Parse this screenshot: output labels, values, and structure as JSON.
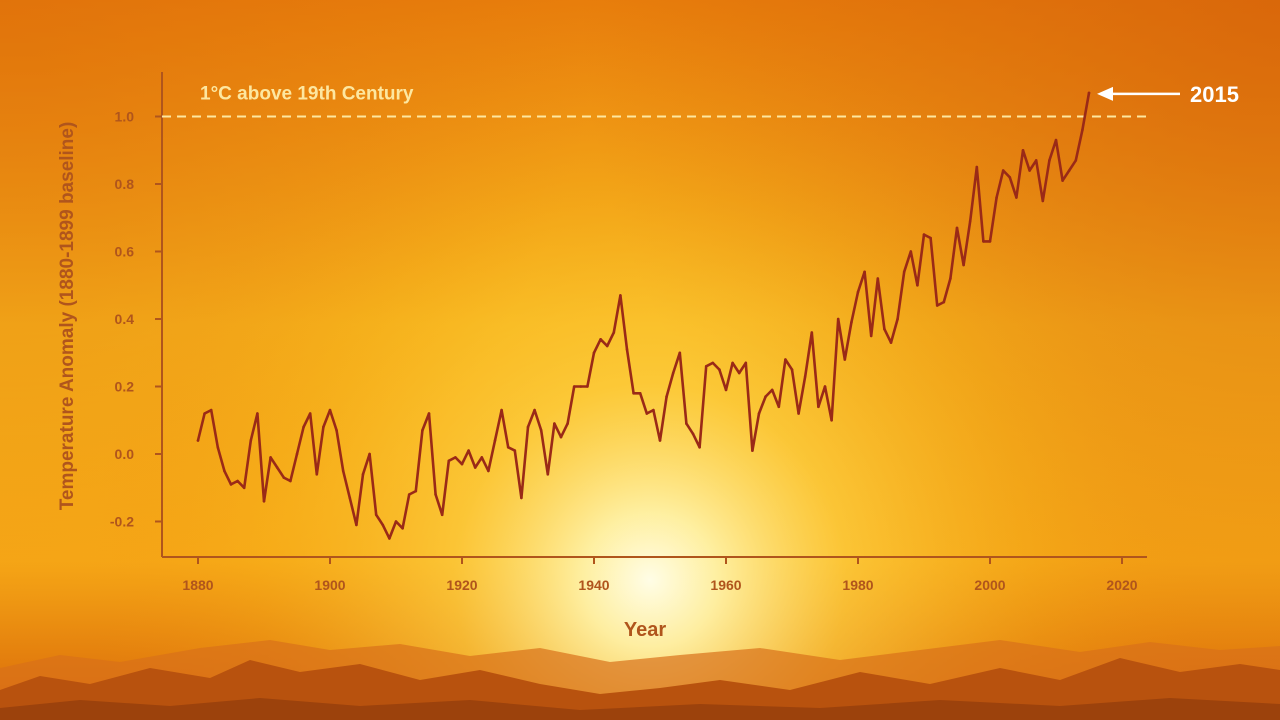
{
  "chart_data": {
    "type": "line",
    "title": "",
    "xlabel": "Year",
    "ylabel": "Temperature Anomaly (1880-1899 baseline)",
    "xlim": [
      1877,
      2022
    ],
    "ylim": [
      -0.3,
      1.12
    ],
    "x_ticks": [
      "1880",
      "1900",
      "1920",
      "1940",
      "1960",
      "1980",
      "2000",
      "2020"
    ],
    "y_ticks": [
      "-0.2",
      "0.0",
      "0.2",
      "0.4",
      "0.6",
      "0.8",
      "1.0"
    ],
    "grid": false,
    "reference_line": {
      "y": 1.0,
      "label": "1°C above 19th Century",
      "style": "dashed"
    },
    "annotation": {
      "label": "2015",
      "x": 2015,
      "y": 1.07
    },
    "series": [
      {
        "color": "#9a2a17",
        "x": [
          1880,
          1881,
          1882,
          1883,
          1884,
          1885,
          1886,
          1887,
          1888,
          1889,
          1890,
          1891,
          1892,
          1893,
          1894,
          1895,
          1896,
          1897,
          1898,
          1899,
          1900,
          1901,
          1902,
          1903,
          1904,
          1905,
          1906,
          1907,
          1908,
          1909,
          1910,
          1911,
          1912,
          1913,
          1914,
          1915,
          1916,
          1917,
          1918,
          1919,
          1920,
          1921,
          1922,
          1923,
          1924,
          1925,
          1926,
          1927,
          1928,
          1929,
          1930,
          1931,
          1932,
          1933,
          1934,
          1935,
          1936,
          1937,
          1938,
          1939,
          1940,
          1941,
          1942,
          1943,
          1944,
          1945,
          1946,
          1947,
          1948,
          1949,
          1950,
          1951,
          1952,
          1953,
          1954,
          1955,
          1956,
          1957,
          1958,
          1959,
          1960,
          1961,
          1962,
          1963,
          1964,
          1965,
          1966,
          1967,
          1968,
          1969,
          1970,
          1971,
          1972,
          1973,
          1974,
          1975,
          1976,
          1977,
          1978,
          1979,
          1980,
          1981,
          1982,
          1983,
          1984,
          1985,
          1986,
          1987,
          1988,
          1989,
          1990,
          1991,
          1992,
          1993,
          1994,
          1995,
          1996,
          1997,
          1998,
          1999,
          2000,
          2001,
          2002,
          2003,
          2004,
          2005,
          2006,
          2007,
          2008,
          2009,
          2010,
          2011,
          2012,
          2013,
          2014,
          2015
        ],
        "values": [
          0.04,
          0.12,
          0.13,
          0.02,
          -0.05,
          -0.09,
          -0.08,
          -0.1,
          0.04,
          0.12,
          -0.14,
          -0.01,
          -0.04,
          -0.07,
          -0.08,
          0.0,
          0.08,
          0.12,
          -0.06,
          0.08,
          0.13,
          0.07,
          -0.05,
          -0.13,
          -0.21,
          -0.06,
          0.0,
          -0.18,
          -0.21,
          -0.25,
          -0.2,
          -0.22,
          -0.12,
          -0.11,
          0.07,
          0.12,
          -0.12,
          -0.18,
          -0.02,
          -0.01,
          -0.03,
          0.01,
          -0.04,
          -0.01,
          -0.05,
          0.04,
          0.13,
          0.02,
          0.01,
          -0.13,
          0.08,
          0.13,
          0.07,
          -0.06,
          0.09,
          0.05,
          0.09,
          0.2,
          0.2,
          0.2,
          0.3,
          0.34,
          0.32,
          0.36,
          0.47,
          0.31,
          0.18,
          0.18,
          0.12,
          0.13,
          0.04,
          0.17,
          0.24,
          0.3,
          0.09,
          0.06,
          0.02,
          0.26,
          0.27,
          0.25,
          0.19,
          0.27,
          0.24,
          0.27,
          0.01,
          0.12,
          0.17,
          0.19,
          0.14,
          0.28,
          0.25,
          0.12,
          0.23,
          0.36,
          0.14,
          0.2,
          0.1,
          0.4,
          0.28,
          0.39,
          0.48,
          0.54,
          0.35,
          0.52,
          0.37,
          0.33,
          0.4,
          0.54,
          0.6,
          0.5,
          0.65,
          0.64,
          0.44,
          0.45,
          0.52,
          0.67,
          0.56,
          0.69,
          0.85,
          0.63,
          0.63,
          0.76,
          0.84,
          0.82,
          0.76,
          0.9,
          0.84,
          0.87,
          0.75,
          0.87,
          0.93,
          0.81,
          0.84,
          0.87,
          0.96,
          1.07
        ]
      }
    ]
  }
}
